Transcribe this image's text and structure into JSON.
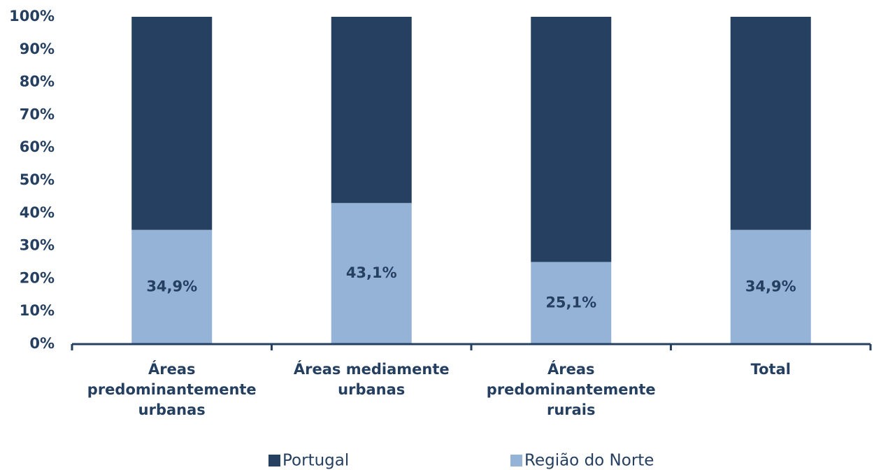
{
  "chart_data": {
    "type": "stacked_bar",
    "categories": [
      "Áreas predominantemente urbanas",
      "Áreas mediamente urbanas",
      "Áreas predominantemente rurais",
      "Total"
    ],
    "series": [
      {
        "name": "Portugal",
        "color": "#264061",
        "values": [
          65.1,
          56.9,
          74.9,
          65.1
        ]
      },
      {
        "name": "Região do Norte",
        "color": "#95b3d7",
        "values": [
          34.9,
          43.1,
          25.1,
          34.9
        ],
        "value_labels": [
          "34,9%",
          "43,1%",
          "25,1%",
          "34,9%"
        ]
      }
    ],
    "ylim": [
      0,
      100
    ],
    "yticks": [
      {
        "value": 0,
        "label": "0%"
      },
      {
        "value": 10,
        "label": "10%"
      },
      {
        "value": 20,
        "label": "20%"
      },
      {
        "value": 30,
        "label": "30%"
      },
      {
        "value": 40,
        "label": "40%"
      },
      {
        "value": 50,
        "label": "50%"
      },
      {
        "value": 60,
        "label": "60%"
      },
      {
        "value": 70,
        "label": "70%"
      },
      {
        "value": 80,
        "label": "80%"
      },
      {
        "value": 90,
        "label": "90%"
      },
      {
        "value": 100,
        "label": "100%"
      }
    ],
    "legend": "bottom"
  }
}
